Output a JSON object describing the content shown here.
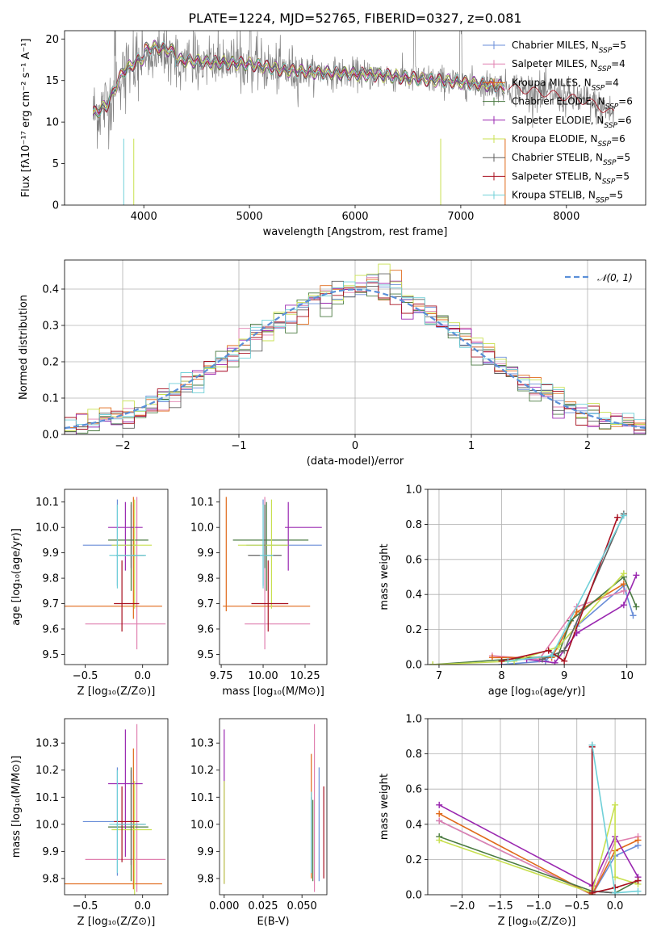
{
  "figure_title": "PLATE=1224, MJD=52765, FIBERID=0327, z=0.081",
  "colors": [
    "#6a8ed8",
    "#e080b0",
    "#e06a1a",
    "#4a7a40",
    "#9a28b0",
    "#c8e050",
    "#606060",
    "#a81020",
    "#70d0d8"
  ],
  "chart_data": [
    {
      "id": "spectrum",
      "type": "line",
      "xlabel": "wavelength [Angstrom, rest frame]",
      "ylabel": "Flux [fλ10⁻¹⁷ erg cm⁻² s⁻¹ A⁻¹]",
      "xlim": [
        3250,
        8750
      ],
      "ylim": [
        0,
        21
      ],
      "xticks": [
        "4000",
        "5000",
        "6000",
        "7000",
        "8000"
      ],
      "yticks": [
        "0",
        "5",
        "10",
        "15",
        "20"
      ],
      "grid": false,
      "legend_position": "top-right",
      "data_wavelength_range": [
        3520,
        8450
      ],
      "data_wavelength_range_model": [
        3520,
        7420
      ],
      "series": [
        {
          "name": "Chabrier MILES, NSSP=5",
          "label_main": "Chabrier MILES, N",
          "label_sub": "SSP",
          "label_end": "=5"
        },
        {
          "name": "Salpeter MILES, NSSP=4",
          "label_main": "Salpeter MILES, N",
          "label_sub": "SSP",
          "label_end": "=4"
        },
        {
          "name": "Kroupa MILES, NSSP=4",
          "label_main": "Kroupa MILES, N",
          "label_sub": "SSP",
          "label_end": "=4"
        },
        {
          "name": "Chabrier ELODIE, NSSP=6",
          "label_main": "Chabrier ELODIE, N",
          "label_sub": "SSP",
          "label_end": "=6"
        },
        {
          "name": "Salpeter ELODIE, NSSP=6",
          "label_main": "Salpeter ELODIE, N",
          "label_sub": "SSP",
          "label_end": "=6"
        },
        {
          "name": "Kroupa ELODIE, NSSP=6",
          "label_main": "Kroupa ELODIE, N",
          "label_sub": "SSP",
          "label_end": "=6"
        },
        {
          "name": "Chabrier STELIB, NSSP=5",
          "label_main": "Chabrier STELIB, N",
          "label_sub": "SSP",
          "label_end": "=5"
        },
        {
          "name": "Salpeter STELIB, NSSP=5",
          "label_main": "Salpeter STELIB, N",
          "label_sub": "SSP",
          "label_end": "=5"
        },
        {
          "name": "Kroupa STELIB, NSSP=5",
          "label_main": "Kroupa STELIB, N",
          "label_sub": "SSP",
          "label_end": "=5"
        }
      ],
      "continuum_anchor_points": [
        [
          3520,
          11
        ],
        [
          3650,
          12
        ],
        [
          3800,
          16
        ],
        [
          3950,
          17.5
        ],
        [
          4100,
          18
        ],
        [
          4300,
          17.5
        ],
        [
          4600,
          17.2
        ],
        [
          5000,
          17
        ],
        [
          5300,
          16.3
        ],
        [
          5600,
          16
        ],
        [
          6000,
          15.8
        ],
        [
          6300,
          15.6
        ],
        [
          6600,
          15.2
        ],
        [
          7000,
          14.8
        ],
        [
          7400,
          14.3
        ],
        [
          7800,
          13.5
        ],
        [
          8200,
          12.5
        ],
        [
          8450,
          11
        ]
      ]
    },
    {
      "id": "residuals",
      "type": "histogram",
      "xlabel": "(data-model)/error",
      "ylabel": "Normed distribution",
      "xlim": [
        -2.5,
        2.5
      ],
      "ylim": [
        0,
        0.48
      ],
      "xticks": [
        "−2",
        "−1",
        "0",
        "1",
        "2"
      ],
      "yticks": [
        "0.0",
        "0.1",
        "0.2",
        "0.3",
        "0.4"
      ],
      "grid": true,
      "legend_position": "top-right",
      "legend_label": "𝒩(0, 1)",
      "bin_width": 0.1,
      "reference_curve": "normal(0,1)"
    },
    {
      "id": "age_vs_Z",
      "type": "scatter",
      "xlabel": "Z [log₁₀(Z/Z⊙)]",
      "ylabel": "age  [log₁₀(age/yr)]",
      "xlim": [
        -0.68,
        0.22
      ],
      "ylim": [
        9.46,
        10.15
      ],
      "xticks": [
        "−0.5",
        "0.0"
      ],
      "yticks": [
        "9.5",
        "9.6",
        "9.7",
        "9.8",
        "9.9",
        "10.0",
        "10.1"
      ],
      "grid": false,
      "points": [
        {
          "x": -0.22,
          "y": 9.93,
          "xerr": [
            0.3,
            0.17
          ],
          "yerr": [
            0.16,
            0.18
          ],
          "series": 0
        },
        {
          "x": -0.05,
          "y": 9.62,
          "xerr": [
            0.45,
            0.25
          ],
          "yerr": [
            0.1,
            0.5
          ],
          "series": 1
        },
        {
          "x": -0.08,
          "y": 9.69,
          "xerr": [
            0.6,
            0.25
          ],
          "yerr": [
            0.05,
            0.43
          ],
          "series": 2
        },
        {
          "x": -0.1,
          "y": 9.95,
          "xerr": [
            0.2,
            0.15
          ],
          "yerr": [
            0.2,
            0.15
          ],
          "series": 3
        },
        {
          "x": -0.15,
          "y": 10.0,
          "xerr": [
            0.15,
            0.15
          ],
          "yerr": [
            0.17,
            0.1
          ],
          "series": 4
        },
        {
          "x": -0.07,
          "y": 9.93,
          "xerr": [
            0.2,
            0.15
          ],
          "yerr": [
            0.25,
            0.18
          ],
          "series": 5
        },
        {
          "x": -0.1,
          "y": 9.89,
          "xerr": [
            0.13,
            0.12
          ],
          "yerr": [
            0.05,
            0.2
          ],
          "series": 6
        },
        {
          "x": -0.18,
          "y": 9.7,
          "xerr": [
            0.07,
            0.15
          ],
          "yerr": [
            0.11,
            0.17
          ],
          "series": 7
        },
        {
          "x": -0.22,
          "y": 9.89,
          "xerr": [
            0.07,
            0.25
          ],
          "yerr": [
            0.13,
            0.2
          ],
          "series": 8
        }
      ]
    },
    {
      "id": "age_vs_mass",
      "type": "scatter",
      "xlabel": "mass [log₁₀(M/M⊙)]",
      "ylabel": "",
      "xlim": [
        9.74,
        10.38
      ],
      "ylim": [
        9.46,
        10.15
      ],
      "xticks": [
        "9.75",
        "10.00",
        "10.25"
      ],
      "yticks": [
        "9.5",
        "9.6",
        "9.7",
        "9.8",
        "9.9",
        "10.0",
        "10.1"
      ],
      "grid": false,
      "points": [
        {
          "x": 10.0,
          "y": 9.93,
          "xerr": [
            0.1,
            0.35
          ],
          "yerr": [
            0.16,
            0.18
          ],
          "series": 0
        },
        {
          "x": 10.01,
          "y": 9.62,
          "xerr": [
            0.12,
            0.27
          ],
          "yerr": [
            0.1,
            0.5
          ],
          "series": 1
        },
        {
          "x": 9.78,
          "y": 9.69,
          "xerr": [
            0.02,
            0.5
          ],
          "yerr": [
            0.02,
            0.43
          ],
          "series": 2
        },
        {
          "x": 10.02,
          "y": 9.95,
          "xerr": [
            0.2,
            0.25
          ],
          "yerr": [
            0.2,
            0.15
          ],
          "series": 3
        },
        {
          "x": 10.15,
          "y": 10.0,
          "xerr": [
            0.02,
            0.2
          ],
          "yerr": [
            0.17,
            0.1
          ],
          "series": 4
        },
        {
          "x": 10.05,
          "y": 9.93,
          "xerr": [
            0.2,
            0.1
          ],
          "yerr": [
            0.25,
            0.18
          ],
          "series": 5
        },
        {
          "x": 10.01,
          "y": 9.89,
          "xerr": [
            0.1,
            0.1
          ],
          "yerr": [
            0.05,
            0.2
          ],
          "series": 6
        },
        {
          "x": 10.03,
          "y": 9.7,
          "xerr": [
            0.1,
            0.12
          ],
          "yerr": [
            0.11,
            0.17
          ],
          "series": 7
        },
        {
          "x": 10.0,
          "y": 9.89,
          "xerr": [
            0.02,
            0.06
          ],
          "yerr": [
            0.13,
            0.2
          ],
          "series": 8
        }
      ]
    },
    {
      "id": "massweight_vs_age",
      "type": "line",
      "xlabel": "age  [log₁₀(age/yr)]",
      "ylabel": "mass weight",
      "xlim": [
        6.82,
        10.3
      ],
      "ylim": [
        0,
        1.0
      ],
      "xticks": [
        "7",
        "8",
        "9",
        "10"
      ],
      "yticks": [
        "0.0",
        "0.2",
        "0.4",
        "0.6",
        "0.8",
        "1.0"
      ],
      "grid": true,
      "series": [
        {
          "series": 0,
          "x": [
            8.0,
            8.7,
            9.2,
            9.95,
            10.1
          ],
          "y": [
            0.0,
            0.02,
            0.22,
            0.45,
            0.28
          ]
        },
        {
          "series": 1,
          "x": [
            7.85,
            8.6,
            9.2,
            9.95
          ],
          "y": [
            0.05,
            0.03,
            0.33,
            0.42
          ]
        },
        {
          "series": 2,
          "x": [
            7.85,
            8.8,
            9.2,
            9.95
          ],
          "y": [
            0.04,
            0.04,
            0.3,
            0.46
          ]
        },
        {
          "series": 3,
          "x": [
            6.9,
            8.9,
            9.1,
            9.95,
            10.15
          ],
          "y": [
            0.0,
            0.05,
            0.25,
            0.5,
            0.33
          ]
        },
        {
          "series": 4,
          "x": [
            8.4,
            8.85,
            9.2,
            9.95,
            10.15
          ],
          "y": [
            0.03,
            0.01,
            0.18,
            0.34,
            0.51
          ]
        },
        {
          "series": 5,
          "x": [
            6.9,
            8.2,
            8.9,
            9.95
          ],
          "y": [
            0.0,
            0.02,
            0.1,
            0.52
          ]
        },
        {
          "series": 6,
          "x": [
            8.65,
            9.0,
            9.95
          ],
          "y": [
            0.03,
            0.08,
            0.86
          ]
        },
        {
          "series": 7,
          "x": [
            8.0,
            8.75,
            9.0,
            9.85
          ],
          "y": [
            0.02,
            0.08,
            0.02,
            0.84
          ]
        },
        {
          "series": 8,
          "x": [
            8.1,
            8.8,
            9.95
          ],
          "y": [
            0.02,
            0.05,
            0.85
          ]
        }
      ]
    },
    {
      "id": "mass_vs_Z",
      "type": "scatter",
      "xlabel": "Z [log₁₀(Z/Z⊙)]",
      "ylabel": "mass [log₁₀(M/M⊙)]",
      "xlim": [
        -0.68,
        0.22
      ],
      "ylim": [
        9.74,
        10.39
      ],
      "xticks": [
        "−0.5",
        "0.0"
      ],
      "yticks": [
        "9.8",
        "9.9",
        "10.0",
        "10.1",
        "10.2",
        "10.3"
      ],
      "grid": false,
      "points": [
        {
          "x": -0.22,
          "y": 10.01,
          "xerr": [
            0.3,
            0.17
          ],
          "yerr": [
            0.2,
            0.2
          ],
          "series": 0
        },
        {
          "x": -0.05,
          "y": 9.87,
          "xerr": [
            0.45,
            0.25
          ],
          "yerr": [
            0.12,
            0.5
          ],
          "series": 1
        },
        {
          "x": -0.08,
          "y": 9.78,
          "xerr": [
            0.6,
            0.25
          ],
          "yerr": [
            0.02,
            0.5
          ],
          "series": 2
        },
        {
          "x": -0.1,
          "y": 9.99,
          "xerr": [
            0.2,
            0.15
          ],
          "yerr": [
            0.2,
            0.22
          ],
          "series": 3
        },
        {
          "x": -0.15,
          "y": 10.15,
          "xerr": [
            0.15,
            0.15
          ],
          "yerr": [
            0.27,
            0.2
          ],
          "series": 4
        },
        {
          "x": -0.07,
          "y": 9.98,
          "xerr": [
            0.2,
            0.15
          ],
          "yerr": [
            0.25,
            0.18
          ],
          "series": 5
        },
        {
          "x": -0.1,
          "y": 10.0,
          "xerr": [
            0.13,
            0.12
          ],
          "yerr": [
            0.15,
            0.2
          ],
          "series": 6
        },
        {
          "x": -0.18,
          "y": 10.01,
          "xerr": [
            0.07,
            0.15
          ],
          "yerr": [
            0.15,
            0.13
          ],
          "series": 7
        },
        {
          "x": -0.22,
          "y": 10.0,
          "xerr": [
            0.07,
            0.25
          ],
          "yerr": [
            0.18,
            0.2
          ],
          "series": 8
        }
      ]
    },
    {
      "id": "mass_vs_EBV",
      "type": "scatter",
      "xlabel": "E(B-V)",
      "ylabel": "",
      "xlim": [
        -0.003,
        0.066
      ],
      "ylim": [
        9.74,
        10.39
      ],
      "xticks": [
        "0.000",
        "0.025",
        "0.050"
      ],
      "yticks": [
        "9.8",
        "9.9",
        "10.0",
        "10.1",
        "10.2",
        "10.3"
      ],
      "grid": false,
      "points": [
        {
          "x": 0.061,
          "y": 10.01,
          "yerr": [
            0.22,
            0.2
          ],
          "series": 0
        },
        {
          "x": 0.058,
          "y": 9.87,
          "yerr": [
            0.12,
            0.5
          ],
          "series": 1
        },
        {
          "x": 0.056,
          "y": 10.0,
          "yerr": [
            0.2,
            0.26
          ],
          "series": 2
        },
        {
          "x": 0.057,
          "y": 9.99,
          "yerr": [
            0.2,
            0.1
          ],
          "series": 3
        },
        {
          "x": 0.0,
          "y": 10.15,
          "yerr": [
            0.37,
            0.2
          ],
          "series": 4
        },
        {
          "x": 0.0,
          "y": 9.98,
          "yerr": [
            0.2,
            0.18
          ],
          "series": 5
        },
        {
          "x": 0.056,
          "y": 10.0,
          "yerr": [
            0.18,
            0.1
          ],
          "series": 6
        },
        {
          "x": 0.064,
          "y": 10.0,
          "yerr": [
            0.2,
            0.14
          ],
          "series": 7
        },
        {
          "x": 0.056,
          "y": 10.0,
          "yerr": [
            0.18,
            0.12
          ],
          "series": 8
        }
      ]
    },
    {
      "id": "massweight_vs_Z",
      "type": "line",
      "xlabel": "Z [log₁₀(Z/Z⊙)]",
      "ylabel": "mass weight",
      "xlim": [
        -2.45,
        0.4
      ],
      "ylim": [
        0,
        1.0
      ],
      "xticks": [
        "−2.0",
        "−1.5",
        "−1.0",
        "−0.5",
        "0.0"
      ],
      "yticks": [
        "0.0",
        "0.2",
        "0.4",
        "0.6",
        "0.8",
        "1.0"
      ],
      "grid": true,
      "series": [
        {
          "series": 0,
          "x": [
            -2.3,
            -0.3,
            0.0,
            0.3
          ],
          "y": [
            0.42,
            0.0,
            0.22,
            0.28
          ]
        },
        {
          "series": 1,
          "x": [
            -2.3,
            -0.3,
            0.0,
            0.3
          ],
          "y": [
            0.42,
            0.0,
            0.3,
            0.33
          ]
        },
        {
          "series": 2,
          "x": [
            -2.3,
            -0.3,
            0.0,
            0.3
          ],
          "y": [
            0.46,
            0.0,
            0.25,
            0.31
          ]
        },
        {
          "series": 3,
          "x": [
            -2.3,
            -0.3,
            0.0,
            0.3
          ],
          "y": [
            0.33,
            0.02,
            0.01,
            0.08
          ]
        },
        {
          "series": 4,
          "x": [
            -2.3,
            -0.3,
            0.0,
            0.3
          ],
          "y": [
            0.51,
            0.05,
            0.33,
            0.1
          ]
        },
        {
          "series": 5,
          "x": [
            -2.3,
            -0.3,
            0.0,
            0.0,
            0.3
          ],
          "y": [
            0.31,
            0.01,
            0.51,
            0.1,
            0.06
          ]
        },
        {
          "series": 6,
          "x": [
            -0.3,
            -0.3,
            0.0
          ],
          "y": [
            0.85,
            0.02,
            0.01
          ]
        },
        {
          "series": 7,
          "x": [
            -0.3,
            -0.3,
            0.0,
            0.3
          ],
          "y": [
            0.84,
            0.01,
            0.04,
            0.08
          ]
        },
        {
          "series": 8,
          "x": [
            -0.3,
            0.0,
            0.3
          ],
          "y": [
            0.85,
            0.01,
            0.02
          ]
        }
      ]
    }
  ]
}
